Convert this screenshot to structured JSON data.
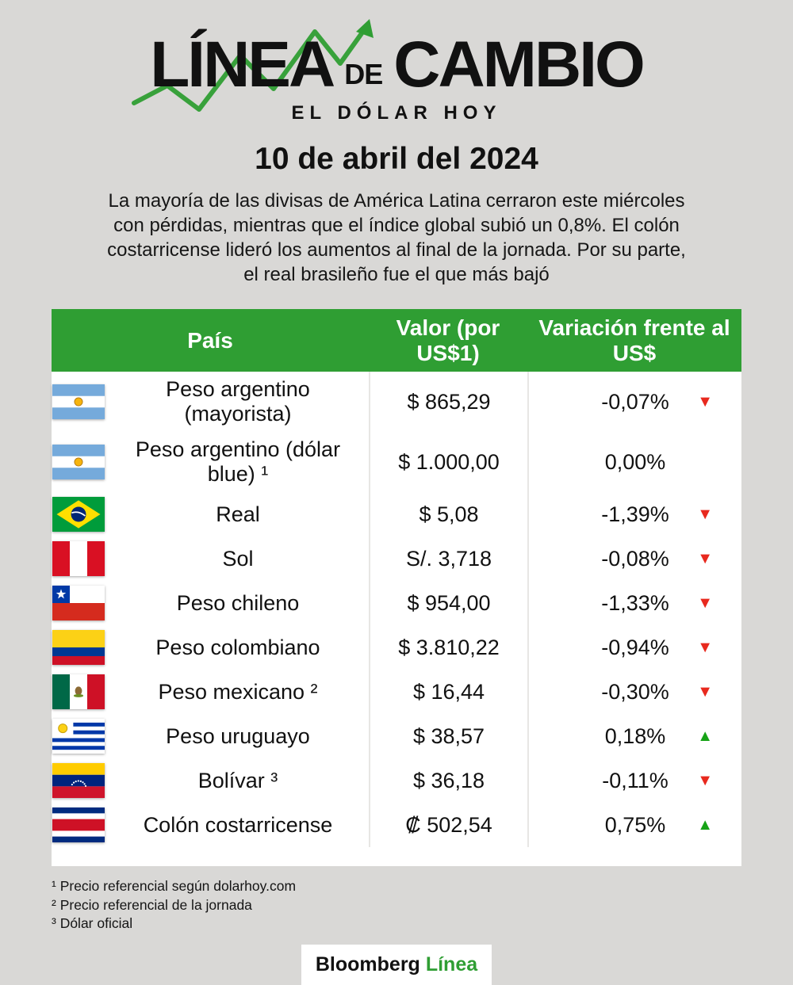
{
  "header": {
    "logo_part1": "LÍNEA",
    "logo_part2": "DE",
    "logo_part3": "CAMBIO",
    "subtitle": "EL DÓLAR HOY",
    "date": "10 de abril del 2024",
    "description": "La mayoría de las divisas de América Latina cerraron este miércoles con pérdidas, mientras que el índice global subió un 0,8%. El colón costarricense lideró los aumentos al final de la jornada. Por su parte, el real brasileño fue el que más bajó"
  },
  "table": {
    "columns": {
      "country": "País",
      "value": "Valor (por US$1)",
      "change": "Variación frente al US$"
    },
    "rows": [
      {
        "flag": "argentina",
        "name": "Peso argentino (mayorista)",
        "value": "$ 865,29",
        "change": "-0,07%",
        "direction": "down"
      },
      {
        "flag": "argentina",
        "name": "Peso argentino (dólar blue) ¹",
        "value": "$ 1.000,00",
        "change": "0,00%",
        "direction": "flat"
      },
      {
        "flag": "brazil",
        "name": "Real",
        "value": "$ 5,08",
        "change": "-1,39%",
        "direction": "down"
      },
      {
        "flag": "peru",
        "name": "Sol",
        "value": "S/. 3,718",
        "change": "-0,08%",
        "direction": "down"
      },
      {
        "flag": "chile",
        "name": "Peso chileno",
        "value": "$ 954,00",
        "change": "-1,33%",
        "direction": "down"
      },
      {
        "flag": "colombia",
        "name": "Peso colombiano",
        "value": "$ 3.810,22",
        "change": "-0,94%",
        "direction": "down"
      },
      {
        "flag": "mexico",
        "name": "Peso mexicano ²",
        "value": "$ 16,44",
        "change": "-0,30%",
        "direction": "down"
      },
      {
        "flag": "uruguay",
        "name": "Peso uruguayo",
        "value": "$ 38,57",
        "change": "0,18%",
        "direction": "up"
      },
      {
        "flag": "venezuela",
        "name": "Bolívar ³",
        "value": "$ 36,18",
        "change": "-0,11%",
        "direction": "down"
      },
      {
        "flag": "costa-rica",
        "name": "Colón costarricense",
        "value": "₡ 502,54",
        "change": "0,75%",
        "direction": "up"
      }
    ]
  },
  "footnotes": [
    "¹ Precio referencial según dolarhoy.com",
    "² Precio referencial de la jornada",
    "³ Dólar oficial"
  ],
  "footer": {
    "brand_black": "Bloomberg",
    "brand_green": "Línea"
  },
  "colors": {
    "background": "#d9d8d6",
    "accent_green": "#2f9e33",
    "up_green": "#17a317",
    "down_red": "#e8291e",
    "table_white": "#ffffff"
  },
  "chart_data": {
    "type": "table",
    "title": "Línea de Cambio — El Dólar Hoy — 10 de abril del 2024",
    "columns": [
      "País",
      "Valor (por US$1)",
      "Variación frente al US$"
    ],
    "rows": [
      [
        "Peso argentino (mayorista)",
        "$ 865,29",
        "-0,07% ▼"
      ],
      [
        "Peso argentino (dólar blue) ¹",
        "$ 1.000,00",
        "0,00%"
      ],
      [
        "Real",
        "$ 5,08",
        "-1,39% ▼"
      ],
      [
        "Sol",
        "S/. 3,718",
        "-0,08% ▼"
      ],
      [
        "Peso chileno",
        "$ 954,00",
        "-1,33% ▼"
      ],
      [
        "Peso colombiano",
        "$ 3.810,22",
        "-0,94% ▼"
      ],
      [
        "Peso mexicano ²",
        "$ 16,44",
        "-0,30% ▼"
      ],
      [
        "Peso uruguayo",
        "$ 38,57",
        "0,18% ▲"
      ],
      [
        "Bolívar ³",
        "$ 36,18",
        "-0,11% ▼"
      ],
      [
        "Colón costarricense",
        "₡ 502,54",
        "0,75% ▲"
      ]
    ]
  }
}
